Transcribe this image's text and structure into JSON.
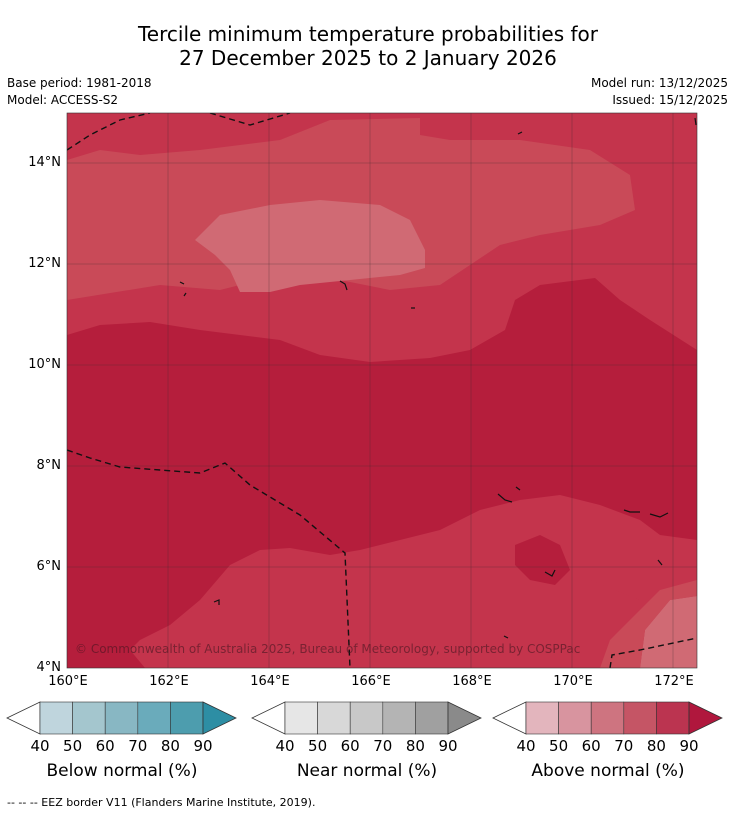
{
  "title": {
    "line1": "Tercile minimum temperature probabilities for",
    "line2": "27 December 2025 to 2 January 2026"
  },
  "meta": {
    "base_period": "Base period: 1981-2018",
    "model": "Model: ACCESS-S2",
    "model_run": "Model run: 13/12/2025",
    "issued": "Issued: 15/12/2025"
  },
  "map": {
    "lat_labels": [
      "14°N",
      "12°N",
      "10°N",
      "8°N",
      "6°N",
      "4°N"
    ],
    "lon_labels": [
      "160°E",
      "162°E",
      "164°E",
      "166°E",
      "168°E",
      "170°E",
      "172°E"
    ],
    "copyright": "© Commonwealth of Australia 2025, Bureau of Meteorology, supported by COSPPac",
    "colors": {
      "above_80_90": "#b51e3c",
      "above_70_80": "#c4344c",
      "above_60_70": "#c94a58",
      "above_50_60": "#d06a74"
    }
  },
  "legend": {
    "ticks": [
      "40",
      "50",
      "60",
      "70",
      "80",
      "90"
    ],
    "below": {
      "label": "Below normal (%)",
      "colors": [
        "#bfd5dd",
        "#a4c6ce",
        "#88b7c3",
        "#6aabbb",
        "#4d9dae",
        "#2d8ea4"
      ]
    },
    "near": {
      "label": "Near normal (%)",
      "colors": [
        "#e6e6e6",
        "#d8d8d8",
        "#c8c8c8",
        "#b4b4b4",
        "#a0a0a0",
        "#8a8a8a"
      ]
    },
    "above": {
      "label": "Above normal (%)",
      "colors": [
        "#e3b5bd",
        "#d8949f",
        "#ce7480",
        "#c55565",
        "#bb3450",
        "#b0173d"
      ]
    }
  },
  "footnote": "--  --  -- EEZ border V11 (Flanders Marine Institute, 2019)."
}
